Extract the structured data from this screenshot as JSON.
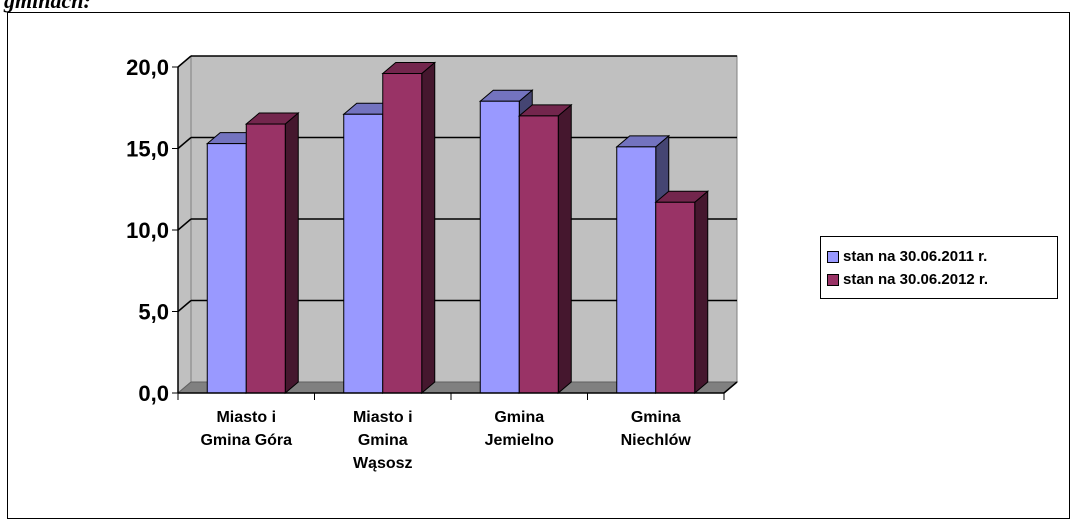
{
  "page": {
    "heading": "gminach:"
  },
  "chart_data": {
    "type": "bar",
    "title": "",
    "xlabel": "",
    "ylabel": "",
    "ylim": [
      0,
      20
    ],
    "yticks": [
      "0,0",
      "5,0",
      "10,0",
      "15,0",
      "20,0"
    ],
    "ytick_values": [
      0,
      5,
      10,
      15,
      20
    ],
    "grid": true,
    "legend_position": "right",
    "three_d": true,
    "categories": [
      [
        "Miasto i",
        "Gmina Góra"
      ],
      [
        "Miasto i",
        "Gmina",
        "Wąsosz"
      ],
      [
        "Gmina",
        "Jemielno"
      ],
      [
        "Gmina",
        "Niechlów"
      ]
    ],
    "series": [
      {
        "name": "stan na 30.06.2011 r.",
        "values": [
          15.3,
          17.1,
          17.9,
          15.1
        ],
        "color": "#9999FF"
      },
      {
        "name": "stan na 30.06.2012 r.",
        "values": [
          16.5,
          19.6,
          17.0,
          11.7
        ],
        "color": "#993366"
      }
    ]
  }
}
